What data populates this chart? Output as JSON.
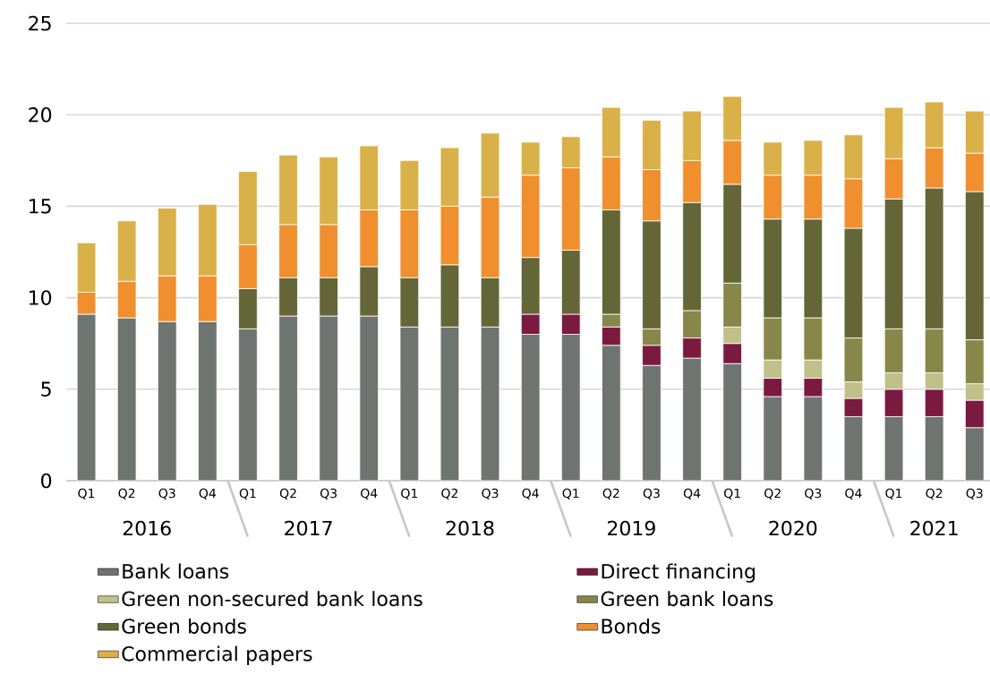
{
  "chart_data": {
    "type": "bar",
    "stacked": true,
    "grid": "y",
    "legend": "bottom",
    "categories": [
      "Q1",
      "Q2",
      "Q3",
      "Q4",
      "Q1",
      "Q2",
      "Q3",
      "Q4",
      "Q1",
      "Q2",
      "Q3",
      "Q4",
      "Q1",
      "Q2",
      "Q3",
      "Q4",
      "Q1",
      "Q2",
      "Q3",
      "Q4",
      "Q1",
      "Q2",
      "Q3"
    ],
    "annotations": [
      "2016",
      "2017",
      "2018",
      "2019",
      "2020",
      "2021"
    ],
    "ylim": [
      0,
      25
    ],
    "yticks": [
      0,
      5,
      10,
      15,
      20,
      25
    ],
    "series": [
      {
        "name": "Bank loans",
        "color": "#6e746f",
        "values": [
          9.1,
          8.9,
          8.7,
          8.7,
          8.3,
          9.0,
          9.0,
          9.0,
          8.4,
          8.4,
          8.4,
          8.0,
          8.0,
          7.4,
          6.3,
          6.7,
          6.4,
          4.6,
          4.6,
          3.5,
          3.5,
          3.5,
          2.9
        ]
      },
      {
        "name": "Direct financing",
        "color": "#7b1a40",
        "values": [
          null,
          null,
          null,
          null,
          null,
          null,
          null,
          null,
          null,
          null,
          null,
          1.1,
          1.1,
          1.0,
          1.1,
          1.1,
          1.1,
          1.0,
          1.0,
          1.0,
          1.5,
          1.5,
          1.5
        ]
      },
      {
        "name": "Green non-secured bank loans",
        "color": "#bfc08a",
        "values": [
          null,
          null,
          null,
          null,
          null,
          null,
          null,
          null,
          null,
          null,
          null,
          null,
          null,
          null,
          null,
          null,
          0.9,
          1.0,
          1.0,
          0.9,
          0.9,
          0.9,
          0.9
        ]
      },
      {
        "name": "Green bank loans",
        "color": "#87874a",
        "values": [
          null,
          null,
          null,
          null,
          null,
          null,
          null,
          null,
          null,
          null,
          null,
          null,
          null,
          0.7,
          0.9,
          1.5,
          2.4,
          2.3,
          2.3,
          2.4,
          2.4,
          2.4,
          2.4
        ]
      },
      {
        "name": "Green bonds",
        "color": "#656638",
        "values": [
          null,
          null,
          null,
          null,
          2.2,
          2.1,
          2.1,
          2.7,
          2.7,
          3.4,
          2.7,
          3.1,
          3.5,
          5.7,
          5.9,
          5.9,
          5.4,
          5.4,
          5.4,
          6.0,
          7.1,
          7.7,
          8.1
        ]
      },
      {
        "name": "Bonds",
        "color": "#f08f2e",
        "values": [
          1.2,
          2.0,
          2.5,
          2.5,
          2.4,
          2.9,
          2.9,
          3.1,
          3.7,
          3.2,
          4.4,
          4.5,
          4.5,
          2.9,
          2.8,
          2.3,
          2.4,
          2.4,
          2.4,
          2.7,
          2.2,
          2.2,
          2.1
        ]
      },
      {
        "name": "Commercial papers",
        "color": "#d9b148",
        "values": [
          2.7,
          3.3,
          3.7,
          3.9,
          4.0,
          3.8,
          3.7,
          3.5,
          2.7,
          3.2,
          3.5,
          1.8,
          1.7,
          2.7,
          2.7,
          2.7,
          2.4,
          1.8,
          1.9,
          2.4,
          2.8,
          2.5,
          2.3
        ]
      }
    ]
  }
}
